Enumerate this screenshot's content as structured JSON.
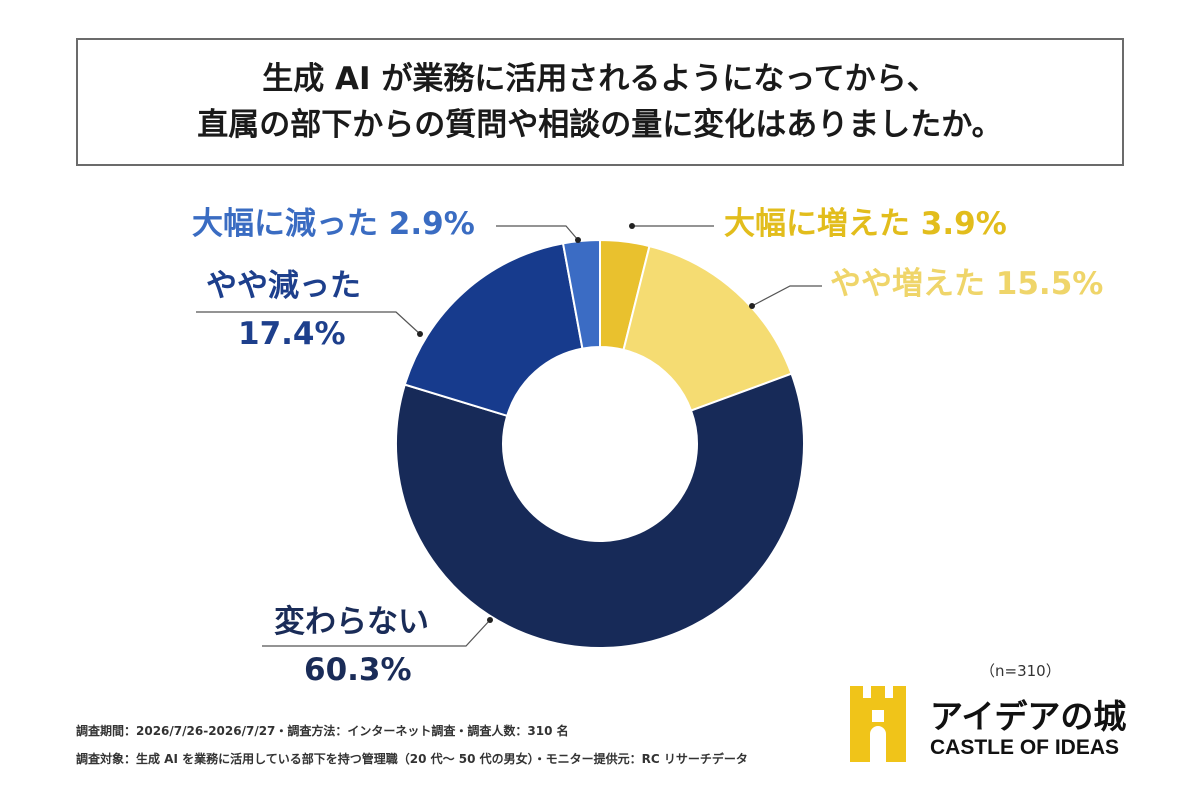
{
  "title": {
    "line1": "生成 AI が業務に活用されるようになってから、",
    "line2": "直属の部下からの質問や相談の量に変化はありましたか。"
  },
  "chart_data": {
    "type": "pie",
    "variant": "donut",
    "slices": [
      {
        "label": "大幅に増えた",
        "value": 3.9,
        "display": "3.9%",
        "color": "#e9c12e"
      },
      {
        "label": "やや増えた",
        "value": 15.5,
        "display": "15.5%",
        "color": "#f5dc72"
      },
      {
        "label": "変わらない",
        "value": 60.3,
        "display": "60.3%",
        "color": "#172a58"
      },
      {
        "label": "やや減った",
        "value": 17.4,
        "display": "17.4%",
        "color": "#173b8d"
      },
      {
        "label": "大幅に減った",
        "value": 2.9,
        "display": "2.9%",
        "color": "#3b6cc4"
      }
    ],
    "start": "top",
    "direction": "clockwise"
  },
  "n_label": "（n=310）",
  "footnotes": {
    "line1": "調査期間：2026/7/26-2026/7/27・調査方法：インターネット調査・調査人数：310 名",
    "line2": "調査対象：生成 AI を業務に活用している部下を持つ管理職（20 代〜 50 代の男女）・モニター提供元：RC リサーチデータ"
  },
  "logo": {
    "jp": "アイデアの城",
    "en": "CASTLE OF IDEAS",
    "color": "#f0c419"
  }
}
